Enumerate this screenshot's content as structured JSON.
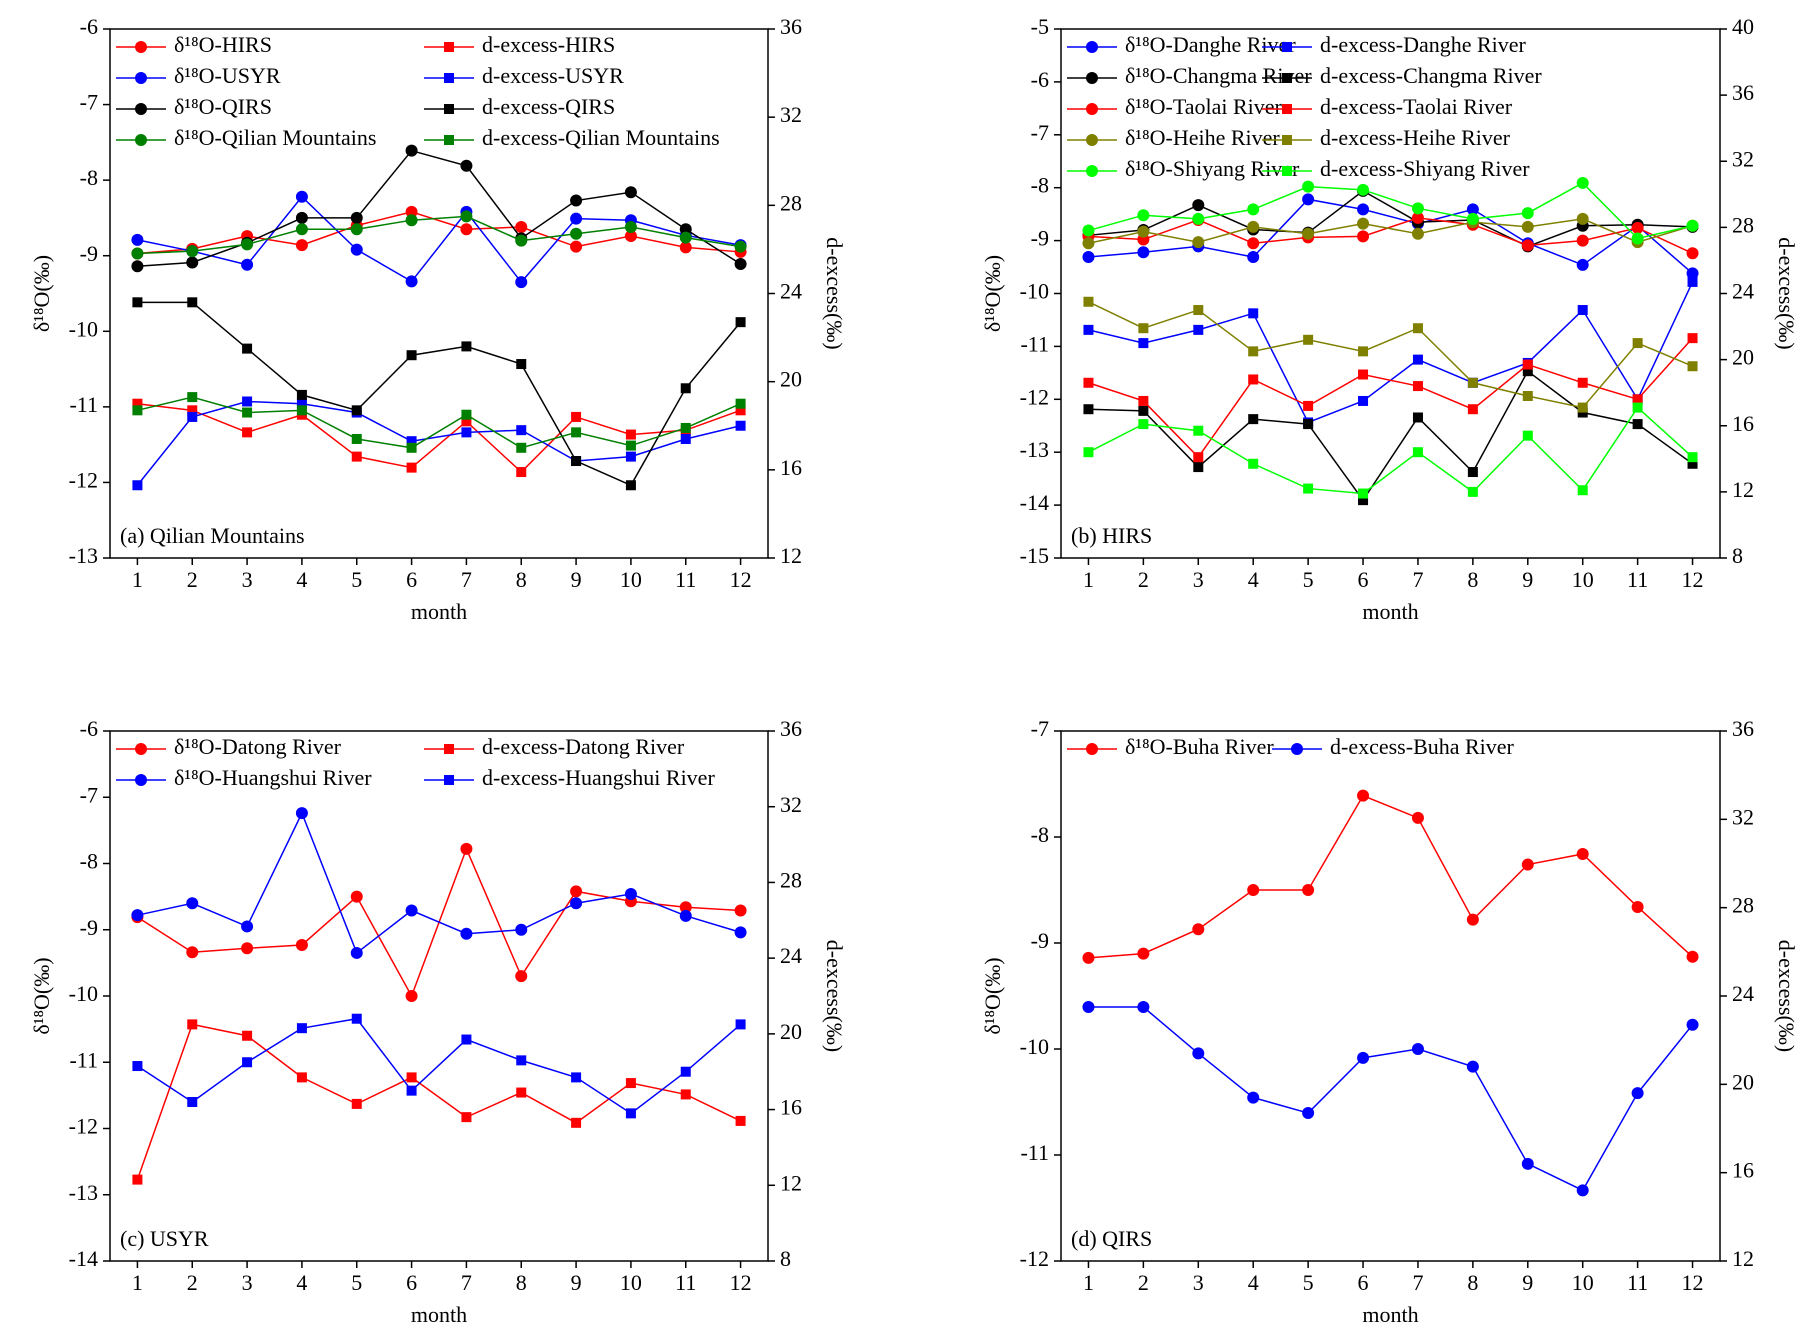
{
  "chart_data": [
    {
      "type": "line",
      "panel_label": "(a) Qilian Mountains",
      "xlabel": "month",
      "ylabel": "δ¹⁸O(‰)",
      "y2label": "d-excess(‰)",
      "x": [
        1,
        2,
        3,
        4,
        5,
        6,
        7,
        8,
        9,
        10,
        11,
        12
      ],
      "xlim": [
        0.5,
        12.5
      ],
      "xticks": [
        1,
        2,
        3,
        4,
        5,
        6,
        7,
        8,
        9,
        10,
        11,
        12
      ],
      "ylim": [
        -13,
        -6
      ],
      "yticks": [
        -13,
        -12,
        -11,
        -10,
        -9,
        -8,
        -7,
        -6
      ],
      "y2lim": [
        12,
        36
      ],
      "y2ticks": [
        12,
        16,
        20,
        24,
        28,
        32,
        36
      ],
      "series": [
        {
          "name": "δ¹⁸O-HIRS",
          "color": "#ff0000",
          "marker": "circle",
          "values": [
            -8.97,
            -8.91,
            -8.74,
            -8.86,
            -8.6,
            -8.42,
            -8.65,
            -8.62,
            -8.88,
            -8.74,
            -8.89,
            -8.95
          ]
        },
        {
          "name": "δ¹⁸O-USYR",
          "color": "#0000ff",
          "marker": "circle",
          "values": [
            -8.79,
            -8.94,
            -9.12,
            -8.22,
            -8.92,
            -9.34,
            -8.42,
            -9.35,
            -8.51,
            -8.53,
            -8.73,
            -8.86
          ]
        },
        {
          "name": "δ¹⁸O-QIRS",
          "color": "#000000",
          "marker": "circle",
          "values": [
            -9.14,
            -9.09,
            -8.83,
            -8.5,
            -8.5,
            -7.61,
            -7.81,
            -8.77,
            -8.27,
            -8.16,
            -8.65,
            -9.11
          ]
        },
        {
          "name": "δ¹⁸O-Qilian Mountains",
          "color": "#008000",
          "marker": "circle",
          "values": [
            -8.97,
            -8.94,
            -8.85,
            -8.65,
            -8.65,
            -8.53,
            -8.48,
            -8.8,
            -8.71,
            -8.62,
            -8.76,
            -8.88
          ]
        },
        {
          "name": "d-excess-HIRS",
          "color": "#ff0000",
          "marker": "square",
          "axis": "y2",
          "values": [
            19.0,
            18.7,
            17.7,
            18.5,
            16.6,
            16.1,
            18.2,
            15.9,
            18.4,
            17.6,
            17.8,
            18.7
          ]
        },
        {
          "name": "d-excess-USYR",
          "color": "#0000ff",
          "marker": "square",
          "axis": "y2",
          "values": [
            15.3,
            18.4,
            19.1,
            19.0,
            18.6,
            17.3,
            17.7,
            17.8,
            16.4,
            16.6,
            17.4,
            18.0
          ]
        },
        {
          "name": "d-excess-QIRS",
          "color": "#000000",
          "marker": "square",
          "axis": "y2",
          "values": [
            23.6,
            23.6,
            21.5,
            19.4,
            18.7,
            21.2,
            21.6,
            20.8,
            16.4,
            15.3,
            19.7,
            22.7
          ]
        },
        {
          "name": "d-excess-Qilian Mountains",
          "color": "#008000",
          "marker": "square",
          "axis": "y2",
          "values": [
            18.7,
            19.3,
            18.6,
            18.7,
            17.4,
            17.0,
            18.5,
            17.0,
            17.7,
            17.1,
            17.9,
            19.0
          ]
        }
      ]
    },
    {
      "type": "line",
      "panel_label": "(b) HIRS",
      "xlabel": "month",
      "ylabel": "δ¹⁸O(‰)",
      "y2label": "d-excess(‰)",
      "x": [
        1,
        2,
        3,
        4,
        5,
        6,
        7,
        8,
        9,
        10,
        11,
        12
      ],
      "xlim": [
        0.5,
        12.5
      ],
      "xticks": [
        1,
        2,
        3,
        4,
        5,
        6,
        7,
        8,
        9,
        10,
        11,
        12
      ],
      "ylim": [
        -15,
        -5
      ],
      "yticks": [
        -15,
        -14,
        -13,
        -12,
        -11,
        -10,
        -9,
        -8,
        -7,
        -6,
        -5
      ],
      "y2lim": [
        8,
        40
      ],
      "y2ticks": [
        8,
        12,
        16,
        20,
        24,
        28,
        32,
        36,
        40
      ],
      "series": [
        {
          "name": "δ¹⁸O-Danghe River",
          "color": "#0000ff",
          "marker": "circle",
          "values": [
            -9.31,
            -9.22,
            -9.11,
            -9.31,
            -8.22,
            -8.41,
            -8.68,
            -8.41,
            -9.05,
            -9.46,
            -8.72,
            -9.62
          ]
        },
        {
          "name": "δ¹⁸O-Changma River",
          "color": "#000000",
          "marker": "circle",
          "values": [
            -8.9,
            -8.8,
            -8.33,
            -8.79,
            -8.85,
            -8.06,
            -8.65,
            -8.61,
            -9.11,
            -8.72,
            -8.7,
            -8.74
          ]
        },
        {
          "name": "δ¹⁸O-Taolai River",
          "color": "#ff0000",
          "marker": "circle",
          "values": [
            -8.92,
            -8.98,
            -8.61,
            -9.05,
            -8.94,
            -8.92,
            -8.57,
            -8.7,
            -9.09,
            -9.0,
            -8.76,
            -9.24
          ]
        },
        {
          "name": "δ¹⁸O-Heihe River",
          "color": "#808000",
          "marker": "circle",
          "values": [
            -9.05,
            -8.83,
            -9.03,
            -8.74,
            -8.87,
            -8.68,
            -8.87,
            -8.65,
            -8.74,
            -8.59,
            -9.03,
            -8.72
          ]
        },
        {
          "name": "δ¹⁸O-Shiyang River",
          "color": "#00ff00",
          "marker": "circle",
          "values": [
            -8.81,
            -8.52,
            -8.59,
            -8.41,
            -7.98,
            -8.04,
            -8.39,
            -8.59,
            -8.48,
            -7.91,
            -8.96,
            -8.72
          ]
        },
        {
          "name": "d-excess-Danghe River",
          "color": "#0000ff",
          "marker": "square",
          "axis": "y2",
          "values": [
            21.8,
            21.0,
            21.8,
            22.8,
            16.2,
            17.5,
            20.0,
            18.6,
            19.8,
            23.0,
            17.6,
            24.7
          ]
        },
        {
          "name": "d-excess-Changma River",
          "color": "#000000",
          "marker": "square",
          "axis": "y2",
          "values": [
            17.0,
            16.9,
            13.5,
            16.4,
            16.1,
            11.5,
            16.5,
            13.2,
            19.3,
            16.8,
            16.1,
            13.7
          ]
        },
        {
          "name": "d-excess-Taolai River",
          "color": "#ff0000",
          "marker": "square",
          "axis": "y2",
          "values": [
            18.6,
            17.5,
            14.1,
            18.8,
            17.2,
            19.1,
            18.4,
            17.0,
            19.7,
            18.6,
            17.6,
            21.3
          ]
        },
        {
          "name": "d-excess-Heihe River",
          "color": "#808000",
          "marker": "square",
          "axis": "y2",
          "values": [
            23.5,
            21.9,
            23.0,
            20.5,
            21.2,
            20.5,
            21.9,
            18.6,
            17.8,
            17.1,
            21.0,
            19.6
          ]
        },
        {
          "name": "d-excess-Shiyang River",
          "color": "#00ff00",
          "marker": "square",
          "axis": "y2",
          "values": [
            14.4,
            16.1,
            15.7,
            13.7,
            12.2,
            11.9,
            14.4,
            12.0,
            15.4,
            12.1,
            17.1,
            14.1
          ]
        }
      ]
    },
    {
      "type": "line",
      "panel_label": "(c) USYR",
      "xlabel": "month",
      "ylabel": "δ¹⁸O(‰)",
      "y2label": "d-excess(‰)",
      "x": [
        1,
        2,
        3,
        4,
        5,
        6,
        7,
        8,
        9,
        10,
        11,
        12
      ],
      "xlim": [
        0.5,
        12.5
      ],
      "xticks": [
        1,
        2,
        3,
        4,
        5,
        6,
        7,
        8,
        9,
        10,
        11,
        12
      ],
      "ylim": [
        -14,
        -6
      ],
      "yticks": [
        -14,
        -13,
        -12,
        -11,
        -10,
        -9,
        -8,
        -7,
        -6
      ],
      "y2lim": [
        8,
        36
      ],
      "y2ticks": [
        8,
        12,
        16,
        20,
        24,
        28,
        32,
        36
      ],
      "series": [
        {
          "name": "δ¹⁸O-Datong River",
          "color": "#ff0000",
          "marker": "circle",
          "values": [
            -8.81,
            -9.34,
            -9.28,
            -9.23,
            -8.5,
            -10.0,
            -7.78,
            -9.7,
            -8.42,
            -8.57,
            -8.66,
            -8.71
          ]
        },
        {
          "name": "δ¹⁸O-Huangshui River",
          "color": "#0000ff",
          "marker": "circle",
          "values": [
            -8.78,
            -8.6,
            -8.95,
            -7.24,
            -9.35,
            -8.71,
            -9.06,
            -9.0,
            -8.6,
            -8.46,
            -8.79,
            -9.04
          ]
        },
        {
          "name": "d-excess-Datong River",
          "color": "#ff0000",
          "marker": "square",
          "axis": "y2",
          "values": [
            12.3,
            20.5,
            19.9,
            17.7,
            16.3,
            17.7,
            15.6,
            16.9,
            15.3,
            17.4,
            16.8,
            15.4
          ]
        },
        {
          "name": "d-excess-Huangshui River",
          "color": "#0000ff",
          "marker": "square",
          "axis": "y2",
          "values": [
            18.3,
            16.4,
            18.5,
            20.3,
            20.8,
            17.0,
            19.7,
            18.6,
            17.7,
            15.8,
            18.0,
            20.5
          ]
        }
      ]
    },
    {
      "type": "line",
      "panel_label": "(d)  QIRS",
      "xlabel": "month",
      "ylabel": "δ¹⁸O(‰)",
      "y2label": "d-excess(‰)",
      "x": [
        1,
        2,
        3,
        4,
        5,
        6,
        7,
        8,
        9,
        10,
        11,
        12
      ],
      "xlim": [
        0.5,
        12.5
      ],
      "xticks": [
        1,
        2,
        3,
        4,
        5,
        6,
        7,
        8,
        9,
        10,
        11,
        12
      ],
      "ylim": [
        -12,
        -7
      ],
      "yticks": [
        -12,
        -11,
        -10,
        -9,
        -8,
        -7
      ],
      "y2lim": [
        12,
        36
      ],
      "y2ticks": [
        12,
        16,
        20,
        24,
        28,
        32,
        36
      ],
      "series": [
        {
          "name": "δ¹⁸O-Buha River",
          "color": "#ff0000",
          "marker": "circle",
          "values": [
            -9.14,
            -9.1,
            -8.87,
            -8.5,
            -8.5,
            -7.61,
            -7.82,
            -8.78,
            -8.26,
            -8.16,
            -8.66,
            -9.13
          ]
        },
        {
          "name": "d-excess-Buha River",
          "color": "#0000ff",
          "marker": "circle",
          "axis": "y2",
          "values": [
            23.5,
            23.5,
            21.4,
            19.4,
            18.7,
            21.2,
            21.6,
            20.8,
            16.4,
            15.2,
            19.6,
            22.7
          ]
        }
      ]
    }
  ]
}
